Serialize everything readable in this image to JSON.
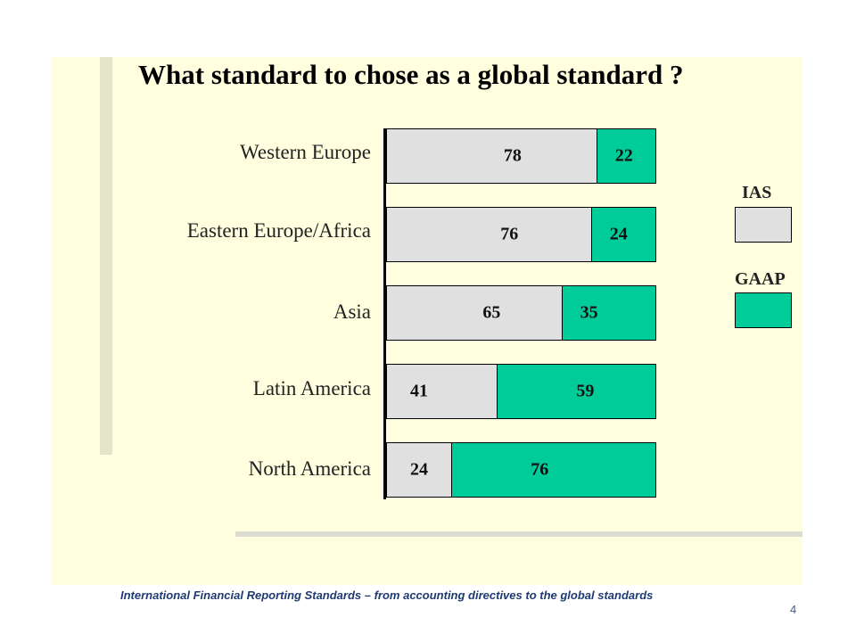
{
  "slide": {
    "footer": "International Financial Reporting Standards – from accounting directives to the global standards",
    "page_number": "4"
  },
  "chart_data": {
    "type": "bar",
    "orientation": "horizontal",
    "stacked": true,
    "title": "What standard to chose as a global standard ?",
    "categories": [
      "Western Europe",
      "Eastern Europe/Africa",
      "Asia",
      "Latin America",
      "North America"
    ],
    "series": [
      {
        "name": "IAS",
        "values": [
          78,
          76,
          65,
          41,
          24
        ],
        "color": "#e0e0e0"
      },
      {
        "name": "GAAP",
        "values": [
          22,
          24,
          35,
          59,
          76
        ],
        "color": "#00cc99"
      }
    ],
    "xlim": [
      0,
      100
    ],
    "grid": false,
    "legend_position": "right"
  }
}
